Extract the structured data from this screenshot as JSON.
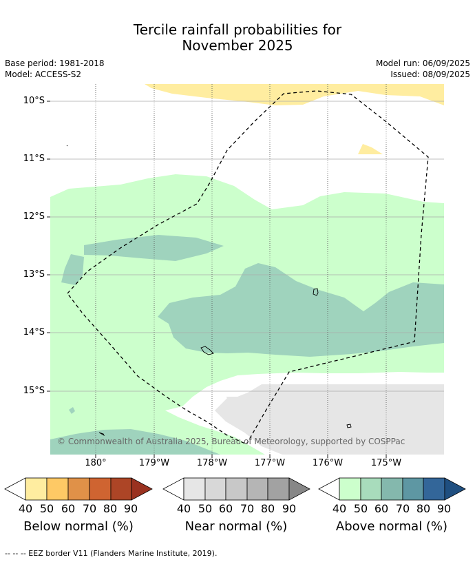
{
  "header": {
    "title_line1": "Tercile rainfall probabilities for",
    "title_line2": "November 2025",
    "base_period": "Base period: 1981-2018",
    "model": "Model: ACCESS-S2",
    "model_run": "Model run: 06/09/2025",
    "issued": "Issued: 08/09/2025"
  },
  "map": {
    "lat_labels": [
      "10°S",
      "11°S",
      "12°S",
      "13°S",
      "14°S",
      "15°S"
    ],
    "lon_labels": [
      "180°",
      "179°W",
      "178°W",
      "177°W",
      "176°W",
      "175°W"
    ],
    "copyright": "© Commonwealth of Australia 2025, Bureau of Meteorology, supported by COSPPac",
    "colors": {
      "below_40": "#ffeda0",
      "near_40": "#e6e6e6",
      "above_40": "#ccffcc",
      "above_60": "#9fd3bd"
    }
  },
  "legend": {
    "ticks": [
      "40",
      "50",
      "60",
      "70",
      "80",
      "90"
    ],
    "below_title": "Below normal (%)",
    "near_title": "Near normal (%)",
    "above_title": "Above normal (%)",
    "below_colors": [
      "#ffeda0",
      "#fec965",
      "#e09148",
      "#cf6431",
      "#ad4526",
      "#9a3220"
    ],
    "near_colors": [
      "#e6e6e6",
      "#d8d8d8",
      "#c8c8c8",
      "#b5b5b5",
      "#a2a2a2",
      "#878787"
    ],
    "above_colors": [
      "#ccffcc",
      "#a8dcbc",
      "#84b8ad",
      "#5e97a3",
      "#336699",
      "#1f4f80"
    ]
  },
  "footer": {
    "eez_note": "-- -- -- EEZ border V11 (Flanders Marine Institute, 2019)."
  }
}
